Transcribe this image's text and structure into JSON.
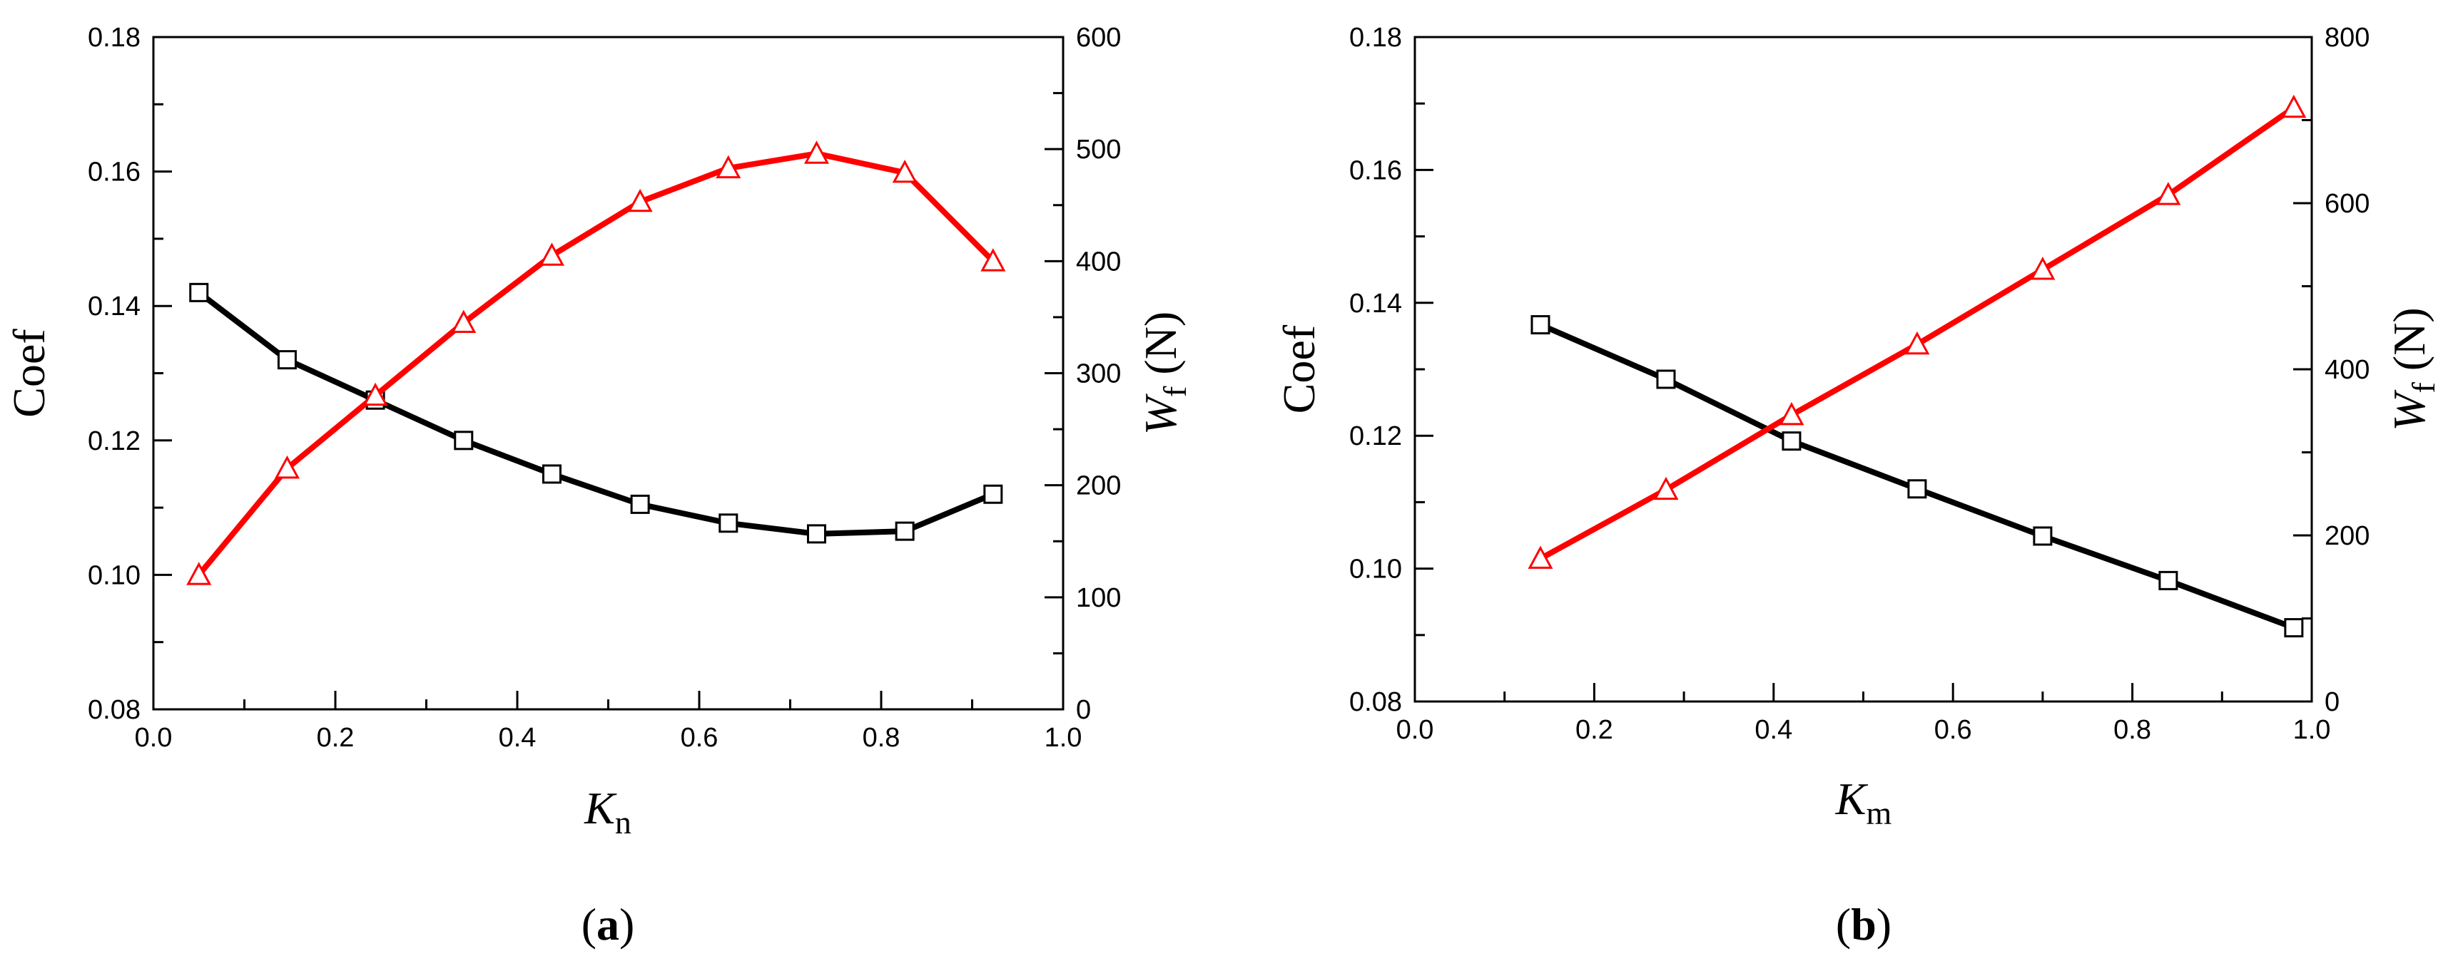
{
  "chart_data": [
    {
      "type": "line",
      "panel_label": {
        "open": "(",
        "letter": "a",
        "close": ")"
      },
      "xlabel": {
        "main": "K",
        "sub": "n"
      },
      "ylabel_left": "Coef",
      "ylabel_right": {
        "main": "W",
        "sub": "f",
        "unit": " (N)"
      },
      "xlim": [
        0.0,
        1.0
      ],
      "xticks": [
        0.0,
        0.2,
        0.4,
        0.6,
        0.8,
        1.0
      ],
      "xtick_labels": [
        "0.0",
        "0.2",
        "0.4",
        "0.6",
        "0.8",
        "1.0"
      ],
      "ylim_left": [
        0.08,
        0.18
      ],
      "yticks_left": [
        0.08,
        0.1,
        0.12,
        0.14,
        0.16,
        0.18
      ],
      "ytick_labels_left": [
        "0.08",
        "0.10",
        "0.12",
        "0.14",
        "0.16",
        "0.18"
      ],
      "ylim_right": [
        0,
        600
      ],
      "yticks_right": [
        0,
        100,
        200,
        300,
        400,
        500,
        600
      ],
      "ytick_labels_right": [
        "0",
        "100",
        "200",
        "300",
        "400",
        "500",
        "600"
      ],
      "series": [
        {
          "name": "Coef",
          "axis": "left",
          "marker": "square",
          "color": "#000000",
          "x": [
            0.05,
            0.147,
            0.244,
            0.341,
            0.438,
            0.535,
            0.632,
            0.729,
            0.826,
            0.923
          ],
          "y": [
            0.142,
            0.132,
            0.126,
            0.12,
            0.115,
            0.1105,
            0.1077,
            0.1061,
            0.1065,
            0.112
          ]
        },
        {
          "name": "Wf",
          "axis": "right",
          "marker": "triangle",
          "color": "#ff0000",
          "x": [
            0.05,
            0.147,
            0.244,
            0.341,
            0.438,
            0.535,
            0.632,
            0.729,
            0.826,
            0.923
          ],
          "y": [
            120,
            215,
            280,
            345,
            405,
            453,
            483,
            496,
            479,
            400
          ]
        }
      ]
    },
    {
      "type": "line",
      "panel_label": {
        "open": "(",
        "letter": "b",
        "close": ")"
      },
      "xlabel": {
        "main": "K",
        "sub": "m"
      },
      "ylabel_left": "Coef",
      "ylabel_right": {
        "main": "W",
        "sub": "f",
        "unit": " (N)"
      },
      "xlim": [
        0.0,
        1.0
      ],
      "xticks": [
        0.0,
        0.2,
        0.4,
        0.6,
        0.8,
        1.0
      ],
      "xtick_labels": [
        "0.0",
        "0.2",
        "0.4",
        "0.6",
        "0.8",
        "1.0"
      ],
      "ylim_left": [
        0.08,
        0.18
      ],
      "yticks_left": [
        0.08,
        0.1,
        0.12,
        0.14,
        0.16,
        0.18
      ],
      "ytick_labels_left": [
        "0.08",
        "0.10",
        "0.12",
        "0.14",
        "0.16",
        "0.18"
      ],
      "ylim_right": [
        0,
        800
      ],
      "yticks_right": [
        0,
        200,
        400,
        600,
        800
      ],
      "ytick_labels_right": [
        "0",
        "200",
        "400",
        "600",
        "800"
      ],
      "series": [
        {
          "name": "Coef",
          "axis": "left",
          "marker": "square",
          "color": "#000000",
          "x": [
            0.14,
            0.28,
            0.42,
            0.56,
            0.7,
            0.84,
            0.98
          ],
          "y": [
            0.1367,
            0.1285,
            0.1192,
            0.112,
            0.1049,
            0.0982,
            0.0911
          ]
        },
        {
          "name": "Wf",
          "axis": "right",
          "marker": "triangle",
          "color": "#ff0000",
          "x": [
            0.14,
            0.28,
            0.42,
            0.56,
            0.7,
            0.84,
            0.98
          ],
          "y": [
            172,
            255,
            345,
            430,
            520,
            610,
            715
          ]
        }
      ]
    }
  ]
}
